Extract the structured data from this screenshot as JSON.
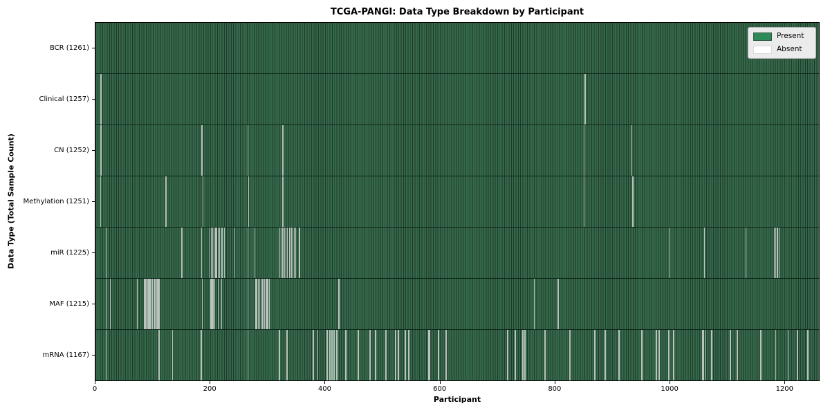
{
  "title": "TCGA-PANGI: Data Type Breakdown by Participant",
  "legend": {
    "items": [
      {
        "label": "Present",
        "color": "#2e8b57"
      },
      {
        "label": "Absent",
        "color": "#ffffff"
      }
    ]
  },
  "chart_data": {
    "type": "heatmap",
    "title": "TCGA-PANGI: Data Type Breakdown by Participant",
    "xlabel": "Participant",
    "ylabel": "Data Type (Total Sample Count)",
    "n_participants": 1261,
    "x_ticks": [
      0,
      200,
      400,
      600,
      800,
      1000,
      1200
    ],
    "present_color": "#2e8b57",
    "absent_color": "#ffffff",
    "legend_position": "upper right",
    "grid": false,
    "rows": [
      {
        "name": "BCR",
        "label": "BCR (1261)",
        "total": 1261,
        "absent": []
      },
      {
        "name": "Clinical",
        "label": "Clinical (1257)",
        "total": 1257,
        "absent": [
          8,
          9,
          852,
          853
        ]
      },
      {
        "name": "CN",
        "label": "CN (1252)",
        "total": 1252,
        "absent": [
          8,
          9,
          184,
          185,
          265,
          325,
          326,
          851,
          933
        ]
      },
      {
        "name": "Methylation",
        "label": "Methylation (1251)",
        "total": 1251,
        "absent": [
          8,
          122,
          123,
          187,
          266,
          326,
          327,
          851,
          936,
          937
        ]
      },
      {
        "name": "miR",
        "label": "miR (1225)",
        "total": 1225,
        "absent": [
          19,
          150,
          184,
          199,
          201,
          204,
          206,
          209,
          211,
          213,
          216,
          220,
          224,
          241,
          265,
          277,
          321,
          323,
          326,
          329,
          331,
          334,
          338,
          341,
          343,
          346,
          348,
          355,
          999,
          1061,
          1133,
          1183,
          1185,
          1187,
          1189,
          1191
        ]
      },
      {
        "name": "MAF",
        "label": "MAF (1215)",
        "total": 1215,
        "absent": [
          19,
          25,
          72,
          84,
          86,
          87,
          88,
          90,
          92,
          94,
          95,
          96,
          99,
          101,
          103,
          106,
          107,
          109,
          110,
          111,
          186,
          200,
          201,
          203,
          205,
          207,
          213,
          219,
          265,
          279,
          281,
          283,
          286,
          289,
          291,
          294,
          296,
          298,
          299,
          300,
          302,
          423,
          424,
          764,
          805,
          806
        ]
      },
      {
        "name": "mRNA",
        "label": "mRNA (1167)",
        "total": 1167,
        "absent": [
          19,
          110,
          111,
          134,
          183,
          184,
          265,
          319,
          320,
          333,
          334,
          379,
          380,
          387,
          403,
          404,
          407,
          408,
          411,
          412,
          415,
          416,
          420,
          421,
          435,
          436,
          457,
          458,
          477,
          478,
          487,
          488,
          505,
          506,
          522,
          523,
          527,
          528,
          539,
          540,
          545,
          546,
          580,
          581,
          582,
          597,
          598,
          610,
          611,
          717,
          718,
          730,
          731,
          744,
          745,
          748,
          749,
          782,
          783,
          826,
          827,
          869,
          870,
          887,
          888,
          911,
          912,
          951,
          952,
          976,
          977,
          981,
          982,
          998,
          999,
          1007,
          1008,
          1057,
          1058,
          1060,
          1063,
          1073,
          1074,
          1105,
          1106,
          1117,
          1118,
          1159,
          1185,
          1207,
          1223,
          1240,
          1241,
          1242
        ]
      }
    ]
  }
}
